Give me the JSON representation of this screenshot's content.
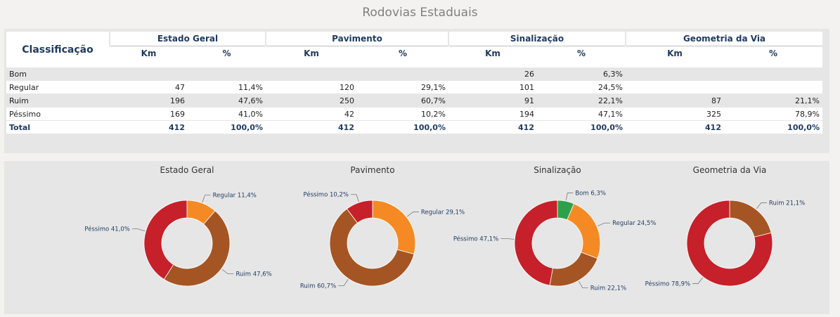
{
  "header": {
    "title": "Rodovias Estaduais"
  },
  "table": {
    "classification_header": "Classificação",
    "groups": [
      "Estado Geral",
      "Pavimento",
      "Sinalização",
      "Geometria da Via"
    ],
    "sub_headers": [
      "Km",
      "%"
    ],
    "rows": [
      {
        "label": "Bom",
        "values": [
          "",
          "",
          "",
          "",
          "26",
          "6,3%",
          "",
          ""
        ]
      },
      {
        "label": "Regular",
        "values": [
          "47",
          "11,4%",
          "120",
          "29,1%",
          "101",
          "24,5%",
          "",
          ""
        ]
      },
      {
        "label": "Ruim",
        "values": [
          "196",
          "47,6%",
          "250",
          "60,7%",
          "91",
          "22,1%",
          "87",
          "21,1%"
        ]
      },
      {
        "label": "Péssimo",
        "values": [
          "169",
          "41,0%",
          "42",
          "10,2%",
          "194",
          "47,1%",
          "325",
          "78,9%"
        ]
      }
    ],
    "total": {
      "label": "Total",
      "values": [
        "412",
        "100,0%",
        "412",
        "100,0%",
        "412",
        "100,0%",
        "412",
        "100,0%"
      ]
    }
  },
  "colors": {
    "Bom": "#2ea04a",
    "Regular": "#f58a24",
    "Ruim": "#a55523",
    "Péssimo": "#c6202b"
  },
  "chart_data": [
    {
      "type": "pie",
      "title": "Estado Geral",
      "slices": [
        {
          "label": "Regular",
          "value": 11.4,
          "text": "Regular 11,4%"
        },
        {
          "label": "Ruim",
          "value": 47.6,
          "text": "Ruim 47,6%"
        },
        {
          "label": "Péssimo",
          "value": 41.0,
          "text": "Péssimo 41,0%"
        }
      ]
    },
    {
      "type": "pie",
      "title": "Pavimento",
      "slices": [
        {
          "label": "Regular",
          "value": 29.1,
          "text": "Regular 29,1%"
        },
        {
          "label": "Ruim",
          "value": 60.7,
          "text": "Ruim 60,7%"
        },
        {
          "label": "Péssimo",
          "value": 10.2,
          "text": "Péssimo 10,2%"
        }
      ]
    },
    {
      "type": "pie",
      "title": "Sinalização",
      "slices": [
        {
          "label": "Bom",
          "value": 6.3,
          "text": "Bom 6,3%"
        },
        {
          "label": "Regular",
          "value": 24.5,
          "text": "Regular 24,5%"
        },
        {
          "label": "Ruim",
          "value": 22.1,
          "text": "Ruim 22,1%"
        },
        {
          "label": "Péssimo",
          "value": 47.1,
          "text": "Péssimo 47,1%"
        }
      ]
    },
    {
      "type": "pie",
      "title": "Geometria da Via",
      "slices": [
        {
          "label": "Ruim",
          "value": 21.1,
          "text": "Ruim 21,1%"
        },
        {
          "label": "Péssimo",
          "value": 78.9,
          "text": "Péssimo 78,9%"
        }
      ]
    }
  ]
}
